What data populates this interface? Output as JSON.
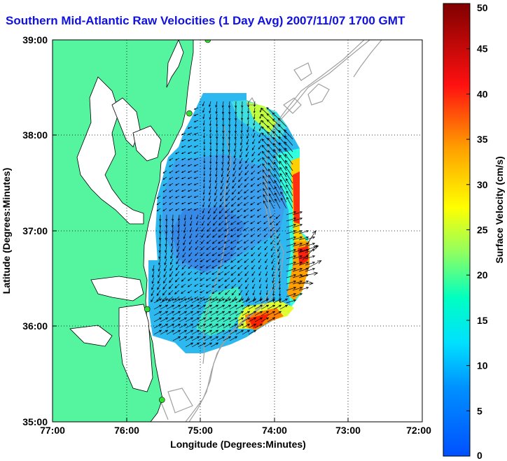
{
  "title": "Southern Mid-Atlantic Raw Velocities (1 Day Avg) 2007/11/07 1700 GMT",
  "axes": {
    "xlabel": "Longitude (Degrees:Minutes)",
    "ylabel": "Latitude (Degrees:Minutes)",
    "xticks": [
      "77:00",
      "76:00",
      "75:00",
      "74:00",
      "73:00",
      "72:00"
    ],
    "yticks": [
      "39:00",
      "38:00",
      "37:00",
      "36:00",
      "35:00"
    ]
  },
  "colorbar": {
    "label": "Surface Velocity (cm/s)",
    "ticks": [
      "50",
      "45",
      "40",
      "35",
      "30",
      "25",
      "20",
      "15",
      "10",
      "5",
      "0"
    ],
    "range": [
      0,
      50
    ],
    "colors": [
      "#0050ff",
      "#00c0ff",
      "#00ffd0",
      "#80ff60",
      "#ffff00",
      "#ff9000",
      "#ff1010",
      "#800000"
    ]
  },
  "colors": {
    "land": "#55f5a0",
    "coastline": "#000000",
    "bathymetry": "#a0a0a0",
    "vectors": "#000000",
    "station": "#30e030"
  },
  "map": {
    "lon_range": [
      -77,
      -72
    ],
    "lat_range": [
      35,
      39
    ],
    "stations": [
      {
        "lon": -74.9,
        "lat": 39.0
      },
      {
        "lon": -75.15,
        "lat": 38.23
      },
      {
        "lon": -75.72,
        "lat": 36.18
      },
      {
        "lon": -75.52,
        "lat": 35.23
      }
    ]
  }
}
